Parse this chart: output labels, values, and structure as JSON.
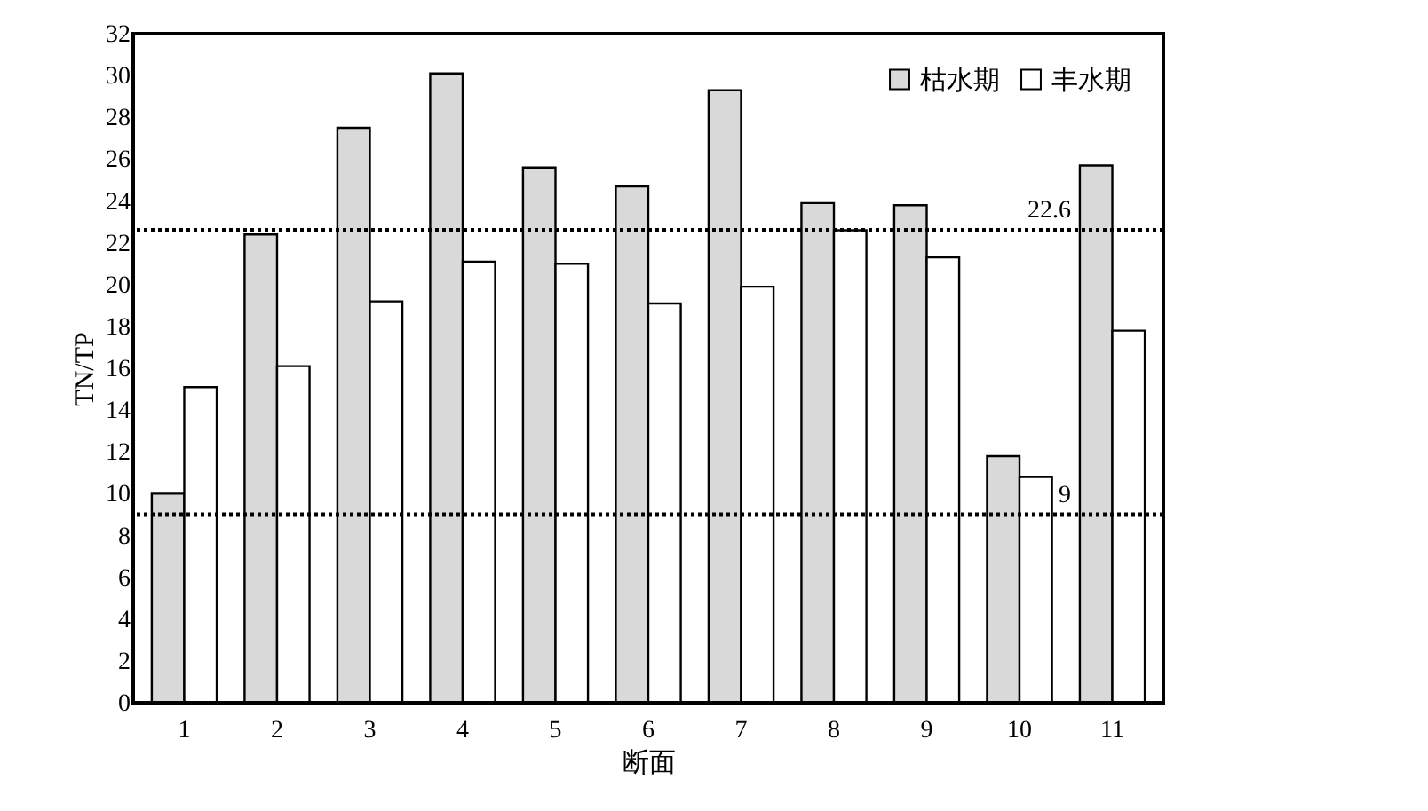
{
  "chart_data": {
    "type": "bar",
    "xlabel": "断面",
    "ylabel": "TN/TP",
    "categories": [
      "1",
      "2",
      "3",
      "4",
      "5",
      "6",
      "7",
      "8",
      "9",
      "10",
      "11"
    ],
    "series": [
      {
        "name": "枯水期",
        "color": "#d9d9d9",
        "values": [
          10,
          22.4,
          27.5,
          30.1,
          25.6,
          24.7,
          29.3,
          23.9,
          23.8,
          11.8,
          25.7
        ]
      },
      {
        "name": "丰水期",
        "color": "#ffffff",
        "values": [
          15.1,
          16.1,
          19.2,
          21.1,
          21.0,
          19.1,
          19.9,
          22.6,
          21.3,
          10.8,
          17.8
        ]
      }
    ],
    "ylim": [
      0,
      32
    ],
    "yticks": [
      0,
      2,
      4,
      6,
      8,
      10,
      12,
      14,
      16,
      18,
      20,
      22,
      24,
      26,
      28,
      30,
      32
    ],
    "ref_lines": [
      {
        "axis": "y",
        "value": 22.6,
        "label": "22.6",
        "line_style": "dotted"
      },
      {
        "axis": "y",
        "value": 9,
        "label": "9",
        "line_style": "dotted"
      }
    ],
    "grid": false,
    "legend": "top right"
  }
}
